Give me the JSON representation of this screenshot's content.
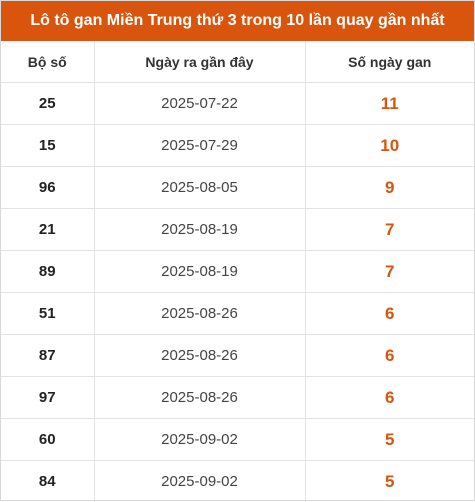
{
  "title": "Lô tô gan Miền Trung thứ 3 trong 10 lần quay gần nhất",
  "columns": [
    "Bộ số",
    "Ngày ra gần đây",
    "Số ngày gan"
  ],
  "colors": {
    "header_bg": "#d9540d",
    "header_text": "#ffffff",
    "days_value": "#d9540d"
  },
  "rows": [
    {
      "number": "25",
      "last_date": "2025-07-22",
      "days": "11"
    },
    {
      "number": "15",
      "last_date": "2025-07-29",
      "days": "10"
    },
    {
      "number": "96",
      "last_date": "2025-08-05",
      "days": "9"
    },
    {
      "number": "21",
      "last_date": "2025-08-19",
      "days": "7"
    },
    {
      "number": "89",
      "last_date": "2025-08-19",
      "days": "7"
    },
    {
      "number": "51",
      "last_date": "2025-08-26",
      "days": "6"
    },
    {
      "number": "87",
      "last_date": "2025-08-26",
      "days": "6"
    },
    {
      "number": "97",
      "last_date": "2025-08-26",
      "days": "6"
    },
    {
      "number": "60",
      "last_date": "2025-09-02",
      "days": "5"
    },
    {
      "number": "84",
      "last_date": "2025-09-02",
      "days": "5"
    }
  ]
}
